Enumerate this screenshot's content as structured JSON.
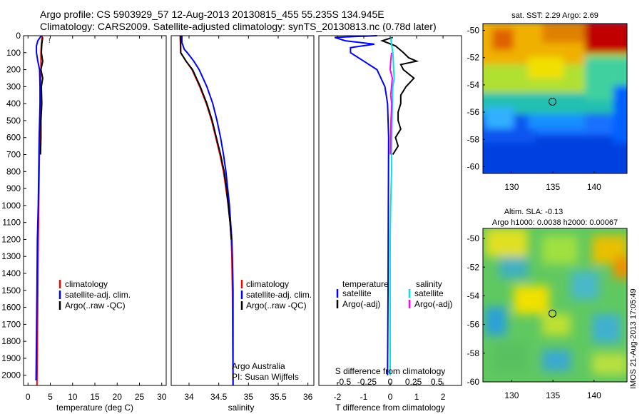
{
  "title_line1": "Argo profile: CS 5903929_57 12-Aug-2013 20130815_455 55.235S 134.945E",
  "title_line2": "Climatology: CARS2009. Satellite-adjusted climatology: synTS_20130813.nc (0.78d later)",
  "side_stamp": "IMOS 21-Aug-2013 17:05:49",
  "depth_ticks": [
    0,
    100,
    200,
    300,
    400,
    500,
    600,
    700,
    800,
    900,
    1000,
    1100,
    1200,
    1300,
    1400,
    1500,
    1600,
    1700,
    1800,
    1900,
    2000
  ],
  "colors": {
    "climatology": "#ff0000",
    "satellite": "#0000ff",
    "argo": "#000000",
    "cyan": "#00e5e5",
    "magenta": "#ff00ff"
  },
  "chart_data": [
    {
      "type": "line",
      "xlabel": "temperature (deg C)",
      "xlim": [
        -1,
        31
      ],
      "xticks": [
        0,
        5,
        10,
        15,
        20,
        25,
        30
      ],
      "ylim": [
        2060,
        0
      ],
      "legend": [
        "climatology",
        "satellite-adj. clim.",
        "Argo(..raw -QC)"
      ],
      "legend_placement": "center",
      "series": [
        {
          "name": "climatology",
          "color": "#ff0000",
          "depth": [
            0,
            50,
            100,
            150,
            200,
            300,
            400,
            600,
            800,
            1000,
            1200,
            1500,
            1800,
            2060
          ],
          "values": [
            3.2,
            3.0,
            2.9,
            2.9,
            2.9,
            2.8,
            2.8,
            2.6,
            2.5,
            2.4,
            2.3,
            2.2,
            2.1,
            2.0
          ]
        },
        {
          "name": "satellite-adj. clim.",
          "color": "#0000ff",
          "depth": [
            0,
            30,
            60,
            100,
            150,
            200,
            300,
            400,
            600,
            800,
            1000,
            1200,
            1500,
            1800,
            2030
          ],
          "values": [
            3.0,
            2.2,
            1.9,
            1.9,
            2.2,
            2.6,
            2.7,
            2.7,
            2.5,
            2.4,
            2.3,
            2.1,
            2.0,
            1.9,
            1.8
          ]
        },
        {
          "name": "Argo(..raw -QC)",
          "color": "#000000",
          "depth": [
            10,
            50,
            100,
            150,
            200,
            250,
            300,
            400,
            500,
            600,
            700
          ],
          "values": [
            3.3,
            3.1,
            3.0,
            3.3,
            2.9,
            3.3,
            3.0,
            3.1,
            2.9,
            2.9,
            2.8
          ]
        }
      ]
    },
    {
      "type": "line",
      "xlabel": "salinity",
      "xlim": [
        33.7,
        36.1
      ],
      "xticks": [
        34,
        34.5,
        35,
        35.5,
        36
      ],
      "ylim": [
        2060,
        0
      ],
      "legend": [
        "climatology",
        "satellite-adj. clim.",
        "Argo(..raw -QC)"
      ],
      "legend_placement": "center-right",
      "annotation": [
        "Argo Australia",
        "PI: Susan Wijffels"
      ],
      "series": [
        {
          "name": "climatology",
          "color": "#ff0000",
          "depth": [
            0,
            100,
            150,
            200,
            300,
            400,
            500,
            600,
            700,
            800,
            900,
            1000,
            1100,
            1200,
            1300,
            1500,
            1800,
            2060
          ],
          "values": [
            33.85,
            33.86,
            33.95,
            34.05,
            34.18,
            34.29,
            34.38,
            34.45,
            34.52,
            34.58,
            34.62,
            34.66,
            34.69,
            34.71,
            34.72,
            34.73,
            34.735,
            34.74
          ]
        },
        {
          "name": "satellite-adj. clim.",
          "color": "#0000ff",
          "depth": [
            0,
            40,
            80,
            100,
            150,
            200,
            300,
            400,
            500,
            600,
            700,
            800,
            900,
            1000,
            1100,
            1200,
            1300,
            1500,
            1800,
            2060
          ],
          "values": [
            33.88,
            33.88,
            33.92,
            33.97,
            34.08,
            34.17,
            34.3,
            34.4,
            34.47,
            34.53,
            34.58,
            34.62,
            34.65,
            34.68,
            34.7,
            34.72,
            34.73,
            34.74,
            34.74,
            34.74
          ]
        },
        {
          "name": "Argo(..raw -QC)",
          "color": "#000000",
          "depth": [
            0,
            100,
            150,
            200,
            300,
            400,
            500,
            600,
            700,
            800,
            900,
            1000,
            1100,
            1200
          ],
          "values": [
            33.86,
            33.86,
            33.95,
            34.06,
            34.19,
            34.3,
            34.39,
            34.46,
            34.53,
            34.59,
            34.63,
            34.66,
            34.69,
            34.71
          ]
        }
      ]
    },
    {
      "type": "line",
      "xlabel": "T difference from climatology",
      "x2label": "S difference from climatology",
      "xlim": [
        -2.7,
        2.7
      ],
      "xticks": [
        -2,
        -1,
        0,
        1,
        2
      ],
      "x2ticks": [
        "-0.5",
        "-0.25",
        "0",
        "0.25",
        "0.5"
      ],
      "ylim": [
        2060,
        0
      ],
      "legend_left_title": "temperature",
      "legend_left": [
        "satellite",
        "Argo(-adj)"
      ],
      "legend_right_title": "salinity",
      "legend_right": [
        "satellite",
        "Argo(-adj)"
      ],
      "series": [
        {
          "name": "temperature satellite",
          "color": "#0000ff",
          "depth": [
            0,
            10,
            30,
            50,
            70,
            100,
            150,
            200,
            300,
            400,
            600,
            1000,
            1500,
            2000
          ],
          "values": [
            -0.5,
            -2.1,
            -1.7,
            -0.6,
            -1.5,
            -1.5,
            -1.0,
            -0.5,
            -0.2,
            -0.1,
            -0.06,
            -0.07,
            -0.08,
            -0.1
          ]
        },
        {
          "name": "temperature Argo(-adj)",
          "color": "#000000",
          "depth": [
            10,
            30,
            60,
            100,
            130,
            150,
            170,
            200,
            250,
            300,
            350,
            400,
            450,
            500,
            550,
            600,
            650,
            700
          ],
          "values": [
            0.1,
            -0.3,
            0.2,
            0.5,
            0.7,
            1.0,
            0.4,
            0.5,
            0.9,
            0.6,
            0.4,
            0.4,
            0.3,
            0.3,
            0.4,
            0.2,
            0.3,
            0.1
          ]
        },
        {
          "name": "salinity satellite",
          "color": "#00e5e5",
          "depth": [
            10,
            50,
            100,
            150,
            200,
            250,
            300,
            400,
            500,
            600,
            700,
            800,
            1000,
            1200,
            1500,
            2000
          ],
          "values": [
            0.02,
            0.05,
            0.1,
            0.12,
            0.13,
            0.15,
            0.1,
            0.08,
            0.07,
            0.06,
            0.05,
            0.05,
            0.02,
            0.0,
            0.0,
            0.0
          ]
        },
        {
          "name": "salinity Argo(-adj)",
          "color": "#ff00ff",
          "depth": [
            100,
            150,
            200,
            250,
            300,
            350,
            400,
            500,
            600,
            700
          ],
          "values": [
            0.05,
            0.02,
            0.0,
            0.08,
            0.05,
            0.02,
            0.06,
            0.03,
            0.02,
            0.01
          ]
        }
      ]
    },
    {
      "type": "heatmap",
      "title": "sat. SST: 2.29 Argo: 2.69",
      "xlim": [
        126.5,
        144
      ],
      "ylim": [
        -60.5,
        -49.5
      ],
      "xticks": [
        130,
        135,
        140
      ],
      "yticks": [
        -50,
        -52,
        -54,
        -56,
        -58,
        -60
      ],
      "marker": {
        "lon": 134.945,
        "lat": -55.235
      }
    },
    {
      "type": "heatmap",
      "title": "Altim. SLA: -0.13",
      "subtitle": "Argo h1000: 0.0038 h2000: 0.00067",
      "xlim": [
        126.5,
        144
      ],
      "ylim": [
        -60,
        -49.3
      ],
      "xticks": [
        130,
        135,
        140
      ],
      "yticks": [
        -50,
        -52,
        -54,
        -56,
        -58,
        -60
      ],
      "marker": {
        "lon": 134.945,
        "lat": -55.235
      }
    }
  ]
}
